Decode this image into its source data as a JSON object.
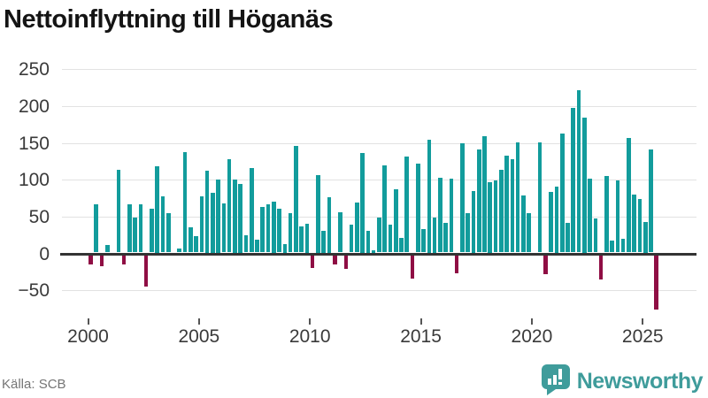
{
  "title": "Nettoinflyttning till Höganäs",
  "source": "Källa: SCB",
  "branding": {
    "name": "Newsworthy"
  },
  "colors": {
    "positive_bar": "#129c9c",
    "negative_bar": "#8f0e44",
    "grid": "#e2e2e2",
    "zero_axis": "#333333",
    "tick_text": "#3a3a3a",
    "source_text": "#757575",
    "brand_teal": "#3f9c9b"
  },
  "chart_data": {
    "type": "bar",
    "title": "Nettoinflyttning till Höganäs",
    "x_unit": "quarter",
    "start_year": 2000,
    "start_quarter": 1,
    "end_label": "2025 Q3",
    "grid": true,
    "ylim": [
      -80,
      260
    ],
    "y_ticks": [
      250,
      200,
      150,
      100,
      50,
      0,
      -50
    ],
    "y_tick_labels": [
      "250",
      "200",
      "150",
      "100",
      "50",
      "0",
      "−50"
    ],
    "x_tick_years": [
      2000,
      2005,
      2010,
      2015,
      2020,
      2025
    ],
    "x_tick_labels": [
      "2000",
      "2005",
      "2010",
      "2015",
      "2020",
      "2025"
    ],
    "values": [
      -13,
      65,
      -15,
      10,
      0,
      112,
      -12,
      65,
      47,
      65,
      -43,
      59,
      117,
      76,
      53,
      0,
      5,
      136,
      34,
      22,
      76,
      111,
      81,
      99,
      67,
      127,
      99,
      93,
      23,
      115,
      17,
      62,
      65,
      69,
      59,
      12,
      53,
      145,
      35,
      39,
      -17,
      105,
      30,
      75,
      -13,
      55,
      -18,
      38,
      68,
      135,
      30,
      3,
      47,
      118,
      38,
      86,
      20,
      130,
      -32,
      121,
      32,
      153,
      48,
      101,
      40,
      100,
      -24,
      148,
      53,
      84,
      140,
      158,
      96,
      98,
      112,
      131,
      127,
      149,
      77,
      53,
      0,
      149,
      -26,
      82,
      90,
      161,
      40,
      196,
      220,
      183,
      100,
      46,
      -33,
      104,
      16,
      98,
      19,
      155,
      79,
      73,
      42,
      140,
      -74
    ]
  }
}
